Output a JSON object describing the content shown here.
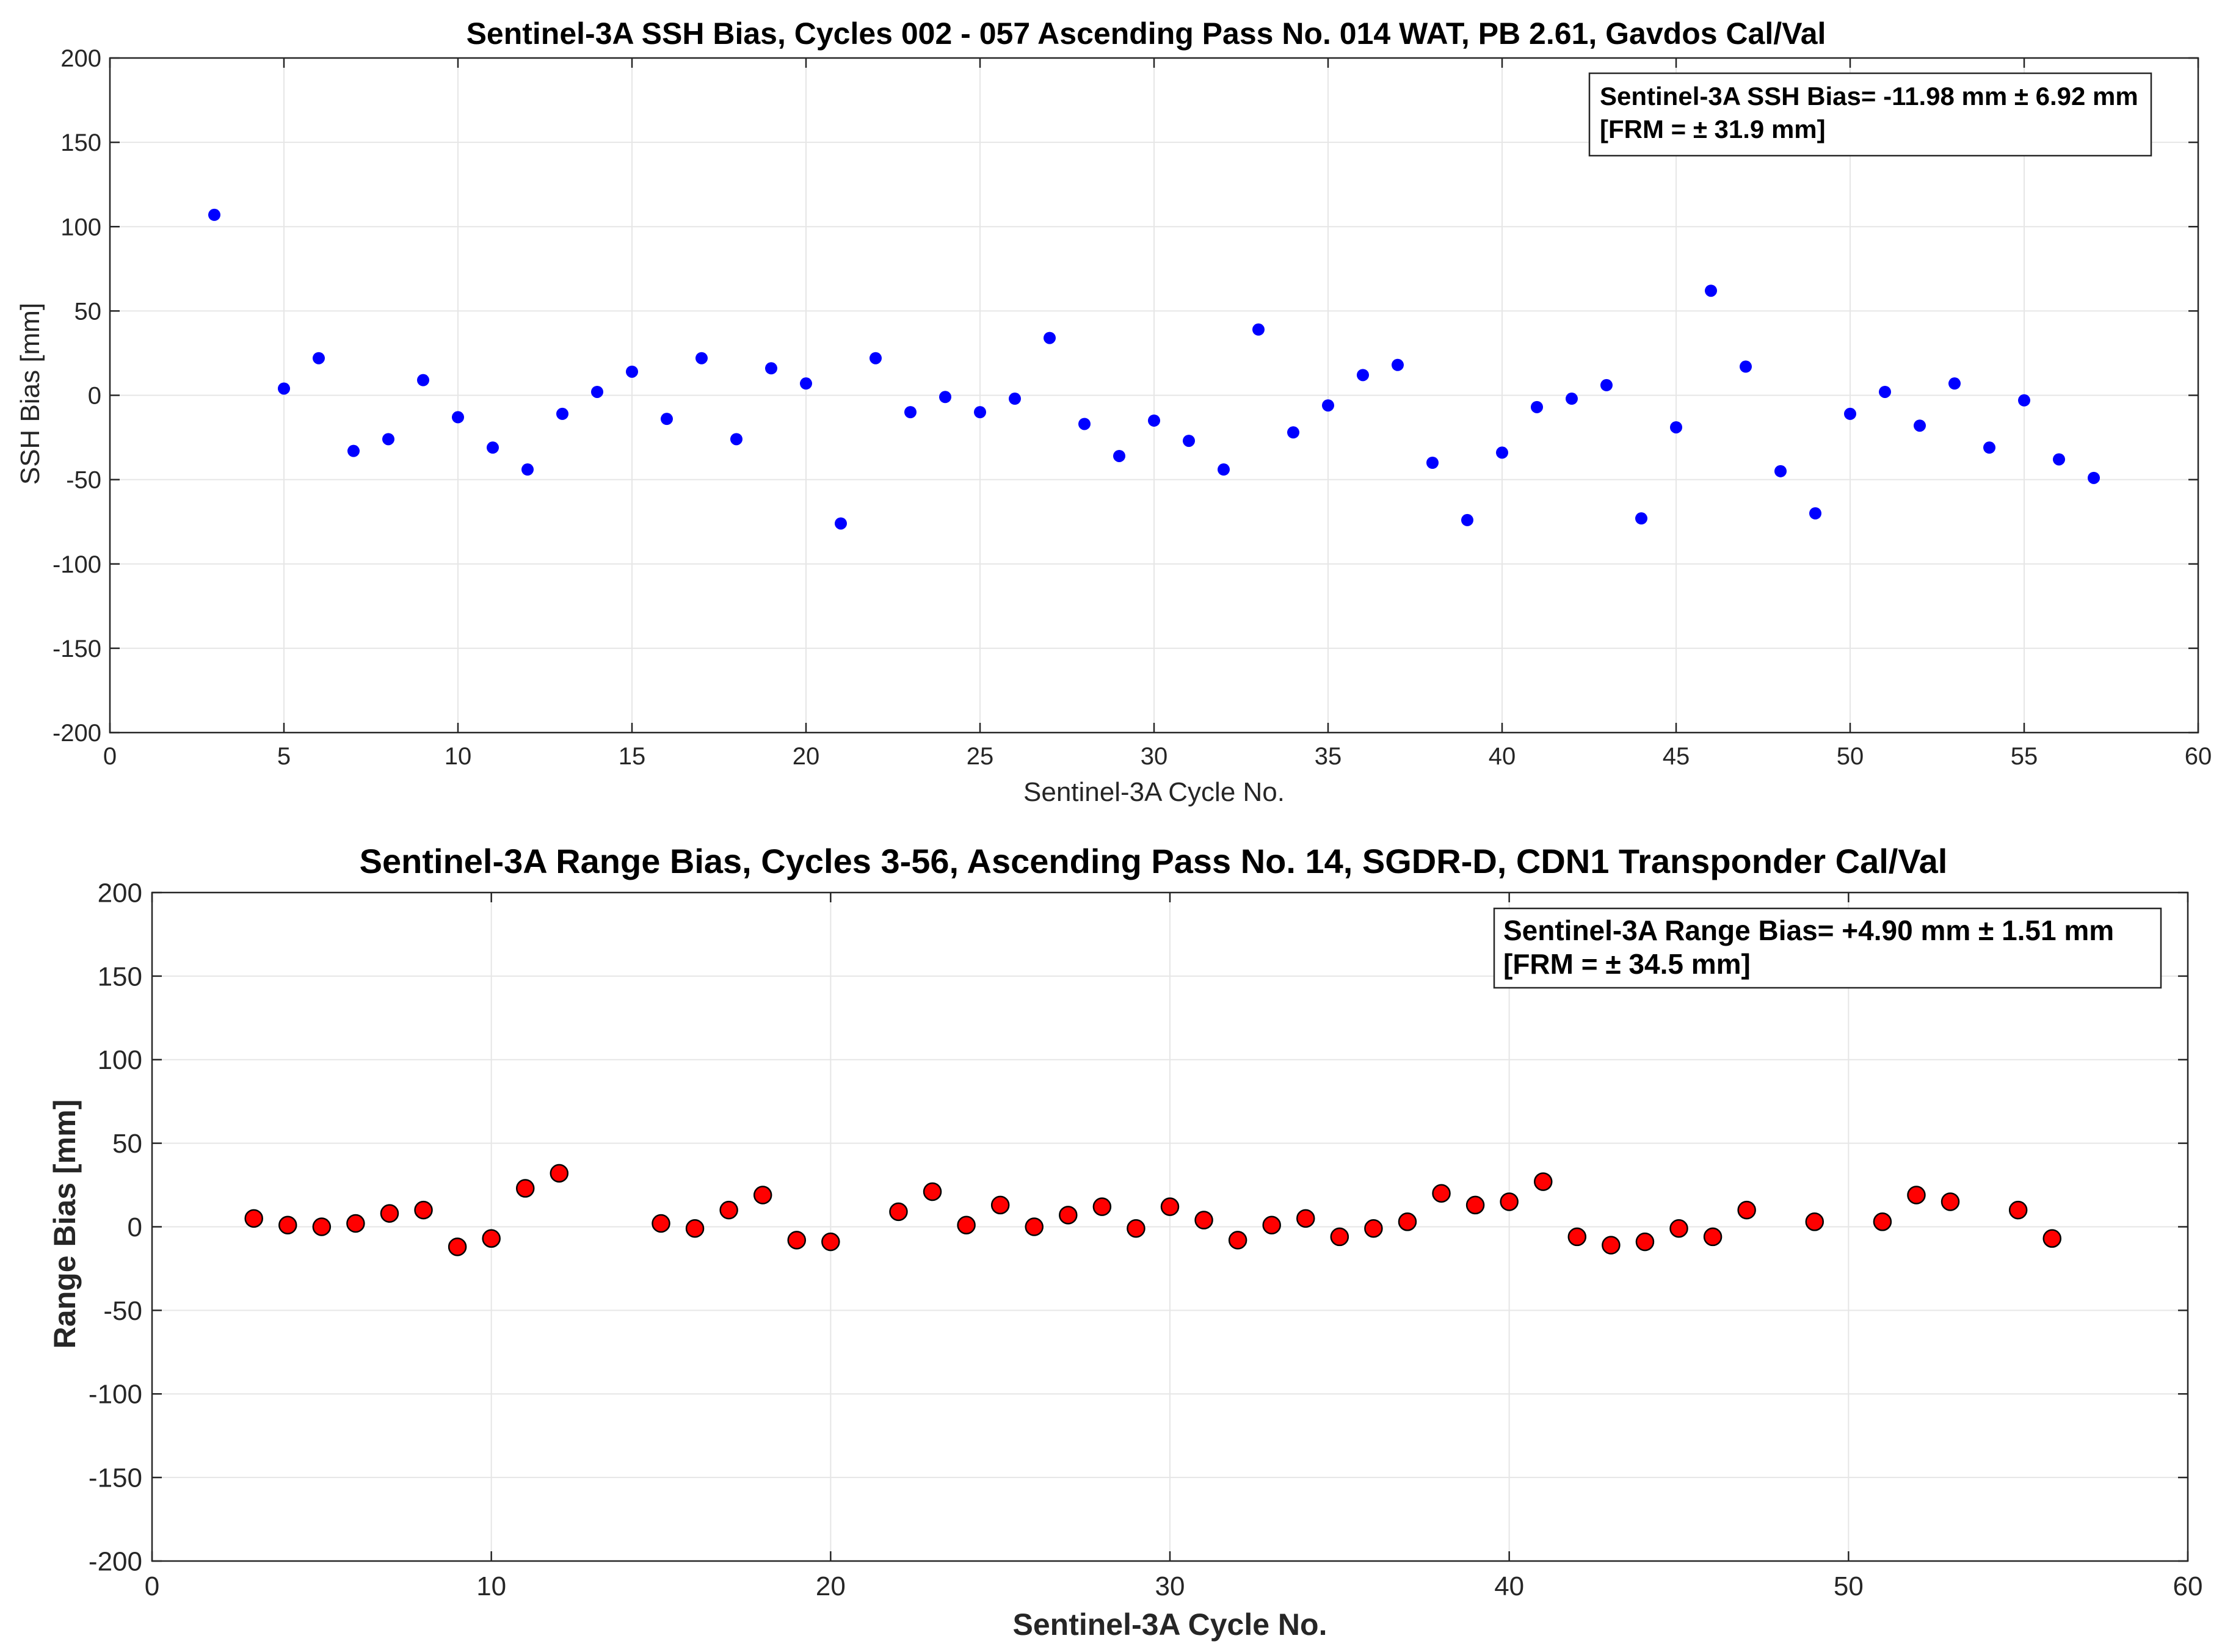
{
  "chart_data": [
    {
      "type": "scatter",
      "title": "Sentinel-3A SSH Bias, Cycles 002 - 057 Ascending Pass No. 014 WAT, PB 2.61, Gavdos Cal/Val",
      "xlabel": "Sentinel-3A Cycle No.",
      "ylabel": "SSH Bias [mm]",
      "xlim": [
        0,
        60
      ],
      "ylim": [
        -200,
        200
      ],
      "xticks": [
        0,
        5,
        10,
        15,
        20,
        25,
        30,
        35,
        40,
        45,
        50,
        55,
        60
      ],
      "yticks": [
        200,
        150,
        100,
        50,
        0,
        -50,
        -100,
        -150,
        -200
      ],
      "grid": true,
      "marker_color": "#0000ff",
      "annotation": [
        "Sentinel-3A SSH Bias= -11.98 mm ±  6.92 mm",
        "[FRM = ± 31.9 mm]"
      ],
      "annotation_placement": "top-right",
      "series": [
        {
          "name": "SSH Bias",
          "x": [
            3,
            5,
            6,
            7,
            8,
            9,
            10,
            11,
            12,
            13,
            14,
            15,
            16,
            17,
            18,
            19,
            20,
            21,
            22,
            23,
            24,
            25,
            26,
            27,
            28,
            29,
            30,
            31,
            32,
            33,
            34,
            35,
            36,
            37,
            38,
            39,
            40,
            41,
            42,
            43,
            44,
            45,
            46,
            47,
            48,
            49,
            50,
            51,
            52,
            53,
            54,
            55,
            56,
            57
          ],
          "y": [
            107,
            4,
            22,
            -33,
            -26,
            9,
            -13,
            -31,
            -44,
            -11,
            2,
            14,
            -14,
            22,
            -26,
            16,
            7,
            -76,
            22,
            -10,
            -1,
            -10,
            -2,
            34,
            -17,
            -36,
            -15,
            -27,
            -44,
            39,
            -22,
            -6,
            12,
            18,
            -40,
            -74,
            -34,
            -7,
            -2,
            6,
            -73,
            -19,
            62,
            17,
            -45,
            -70,
            -11,
            2,
            -18,
            7,
            -31,
            -3,
            -38,
            -49
          ]
        }
      ]
    },
    {
      "type": "scatter",
      "title": "Sentinel-3A Range Bias, Cycles 3-56, Ascending Pass No. 14, SGDR-D, CDN1 Transponder Cal/Val",
      "xlabel": "Sentinel-3A Cycle No.",
      "ylabel": "Range Bias [mm]",
      "xlim": [
        0,
        60
      ],
      "ylim": [
        -200,
        200
      ],
      "xticks": [
        0,
        10,
        20,
        30,
        40,
        50,
        60
      ],
      "yticks": [
        200,
        150,
        100,
        50,
        0,
        -50,
        -100,
        -150,
        -200
      ],
      "grid": true,
      "marker_color": "#ff0000",
      "annotation": [
        "Sentinel-3A Range Bias=  +4.90 mm ±  1.51 mm",
        "[FRM = ± 34.5 mm]"
      ],
      "annotation_placement": "top-right",
      "series": [
        {
          "name": "Range Bias",
          "x": [
            3,
            4,
            5,
            6,
            7,
            8,
            9,
            10,
            11,
            12,
            15,
            16,
            17,
            18,
            19,
            20,
            22,
            23,
            24,
            25,
            26,
            27,
            28,
            29,
            30,
            31,
            32,
            33,
            34,
            35,
            36,
            37,
            38,
            39,
            40,
            41,
            42,
            43,
            44,
            45,
            46,
            47,
            49,
            51,
            52,
            53,
            55,
            56
          ],
          "y": [
            5,
            1,
            0,
            2,
            8,
            10,
            -12,
            -7,
            23,
            32,
            2,
            -1,
            10,
            19,
            -8,
            -9,
            9,
            21,
            1,
            13,
            0,
            7,
            12,
            -1,
            12,
            4,
            -8,
            1,
            5,
            -6,
            -1,
            3,
            20,
            13,
            15,
            27,
            -6,
            -11,
            -9,
            -1,
            -6,
            10,
            3,
            3,
            19,
            15,
            10,
            -7
          ]
        }
      ]
    }
  ]
}
